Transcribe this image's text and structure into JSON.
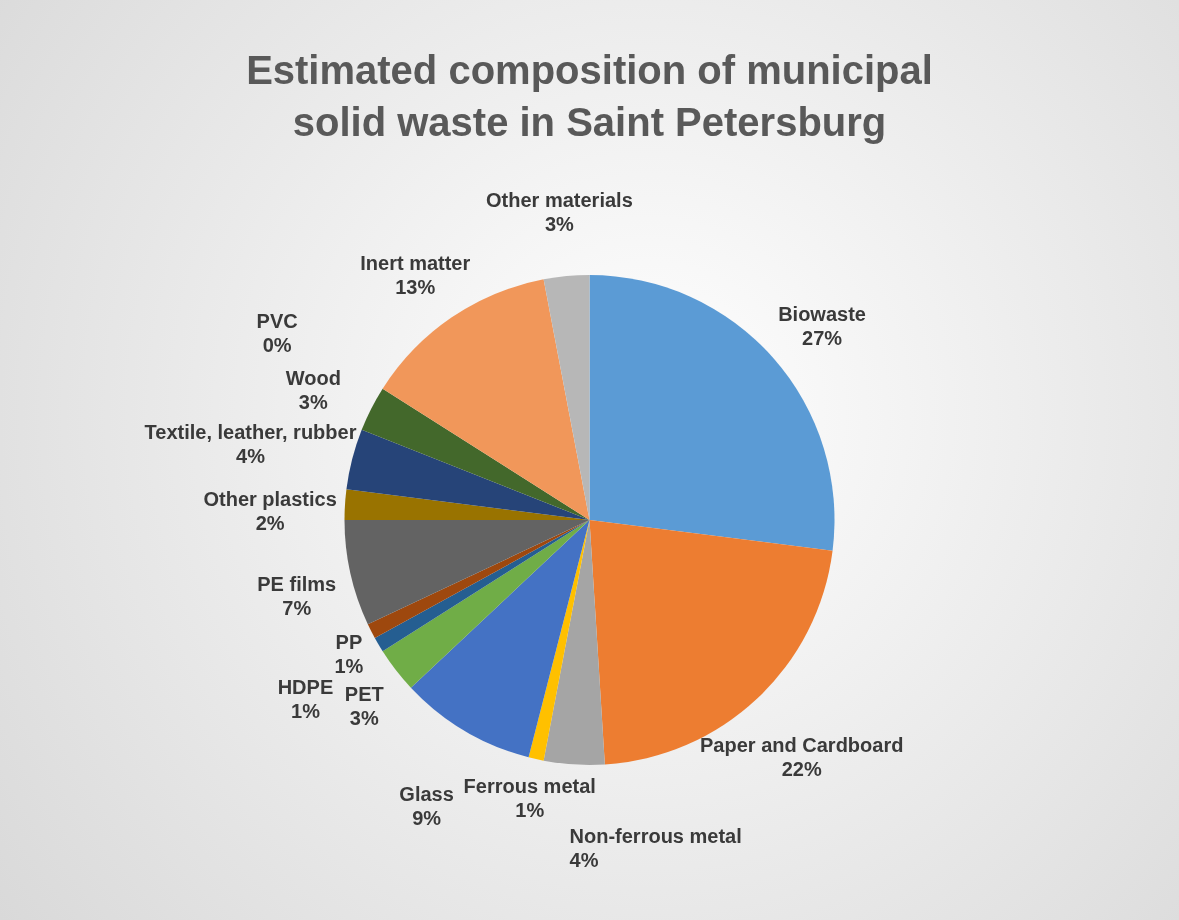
{
  "chart_data": {
    "type": "pie",
    "title": "Estimated composition of municipal solid waste in Saint Petersburg",
    "categories": [
      "Biowaste",
      "Paper and Cardboard",
      "Non-ferrous metal",
      "Ferrous metal",
      "Glass",
      "PET",
      "HDPE",
      "PP",
      "PE films",
      "Other plastics",
      "Textile, leather, rubber",
      "Wood",
      "PVC",
      "Inert matter",
      "Other materials"
    ],
    "values": [
      27,
      22,
      4,
      1,
      9,
      3,
      1,
      1,
      7,
      2,
      4,
      3,
      0,
      13,
      3
    ],
    "value_labels": [
      "27%",
      "22%",
      "4%",
      "1%",
      "9%",
      "3%",
      "1%",
      "1%",
      "7%",
      "2%",
      "4%",
      "3%",
      "0%",
      "13%",
      "3%"
    ],
    "colors": [
      "#5b9bd5",
      "#ed7d31",
      "#a5a5a5",
      "#ffc000",
      "#4472c4",
      "#70ad47",
      "#255e91",
      "#9e480e",
      "#636363",
      "#997300",
      "#264478",
      "#43682b",
      "#7aa6d9",
      "#f1975a",
      "#b7b7b7"
    ],
    "legend": false
  }
}
